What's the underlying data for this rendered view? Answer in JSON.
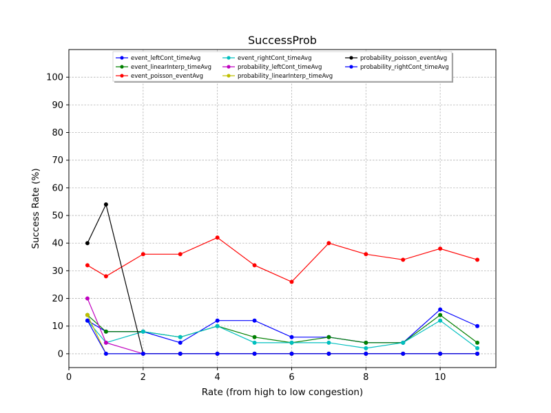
{
  "chart_data": {
    "type": "line",
    "title": "SuccessProb",
    "xlabel": "Rate (from high to low congestion)",
    "ylabel": "Success Rate (%)",
    "xlim": [
      0,
      11.5
    ],
    "ylim": [
      -5,
      110
    ],
    "xticks": [
      0,
      2,
      4,
      6,
      8,
      10
    ],
    "yticks": [
      0,
      10,
      20,
      30,
      40,
      50,
      60,
      70,
      80,
      90,
      100
    ],
    "grid": true,
    "legend_placement": "top-center",
    "x": [
      0.5,
      1,
      2,
      3,
      4,
      5,
      6,
      7,
      8,
      9,
      10,
      11
    ],
    "series": [
      {
        "name": "event_leftCont_timeAvg",
        "color": "#0000ff",
        "values": [
          12,
          8,
          8,
          4,
          12,
          12,
          6,
          6,
          4,
          4,
          16,
          10
        ]
      },
      {
        "name": "event_linearInterp_timeAvg",
        "color": "#008000",
        "values": [
          14,
          8,
          8,
          6,
          10,
          6,
          4,
          6,
          4,
          4,
          14,
          4
        ]
      },
      {
        "name": "event_poisson_eventAvg",
        "color": "#ff0000",
        "values": [
          32,
          28,
          36,
          36,
          42,
          32,
          26,
          40,
          36,
          34,
          38,
          34
        ]
      },
      {
        "name": "event_rightCont_timeAvg",
        "color": "#00bfbf",
        "values": [
          12,
          4,
          8,
          6,
          10,
          4,
          4,
          4,
          2,
          4,
          12,
          2
        ]
      },
      {
        "name": "probability_leftCont_timeAvg",
        "color": "#bf00bf",
        "values": [
          20,
          4,
          0,
          0,
          0,
          0,
          0,
          0,
          0,
          0,
          0,
          0
        ]
      },
      {
        "name": "probability_linearInterp_timeAvg",
        "color": "#bfbf00",
        "values": [
          14,
          0,
          0,
          0,
          0,
          0,
          0,
          0,
          0,
          0,
          0,
          0
        ]
      },
      {
        "name": "probability_poisson_eventAvg",
        "color": "#000000",
        "values": [
          40,
          54,
          0,
          0,
          0,
          0,
          0,
          0,
          0,
          0,
          0,
          0
        ]
      },
      {
        "name": "probability_rightCont_timeAvg",
        "color": "#0000ff",
        "values": [
          12,
          0,
          0,
          0,
          0,
          0,
          0,
          0,
          0,
          0,
          0,
          0
        ]
      }
    ]
  }
}
